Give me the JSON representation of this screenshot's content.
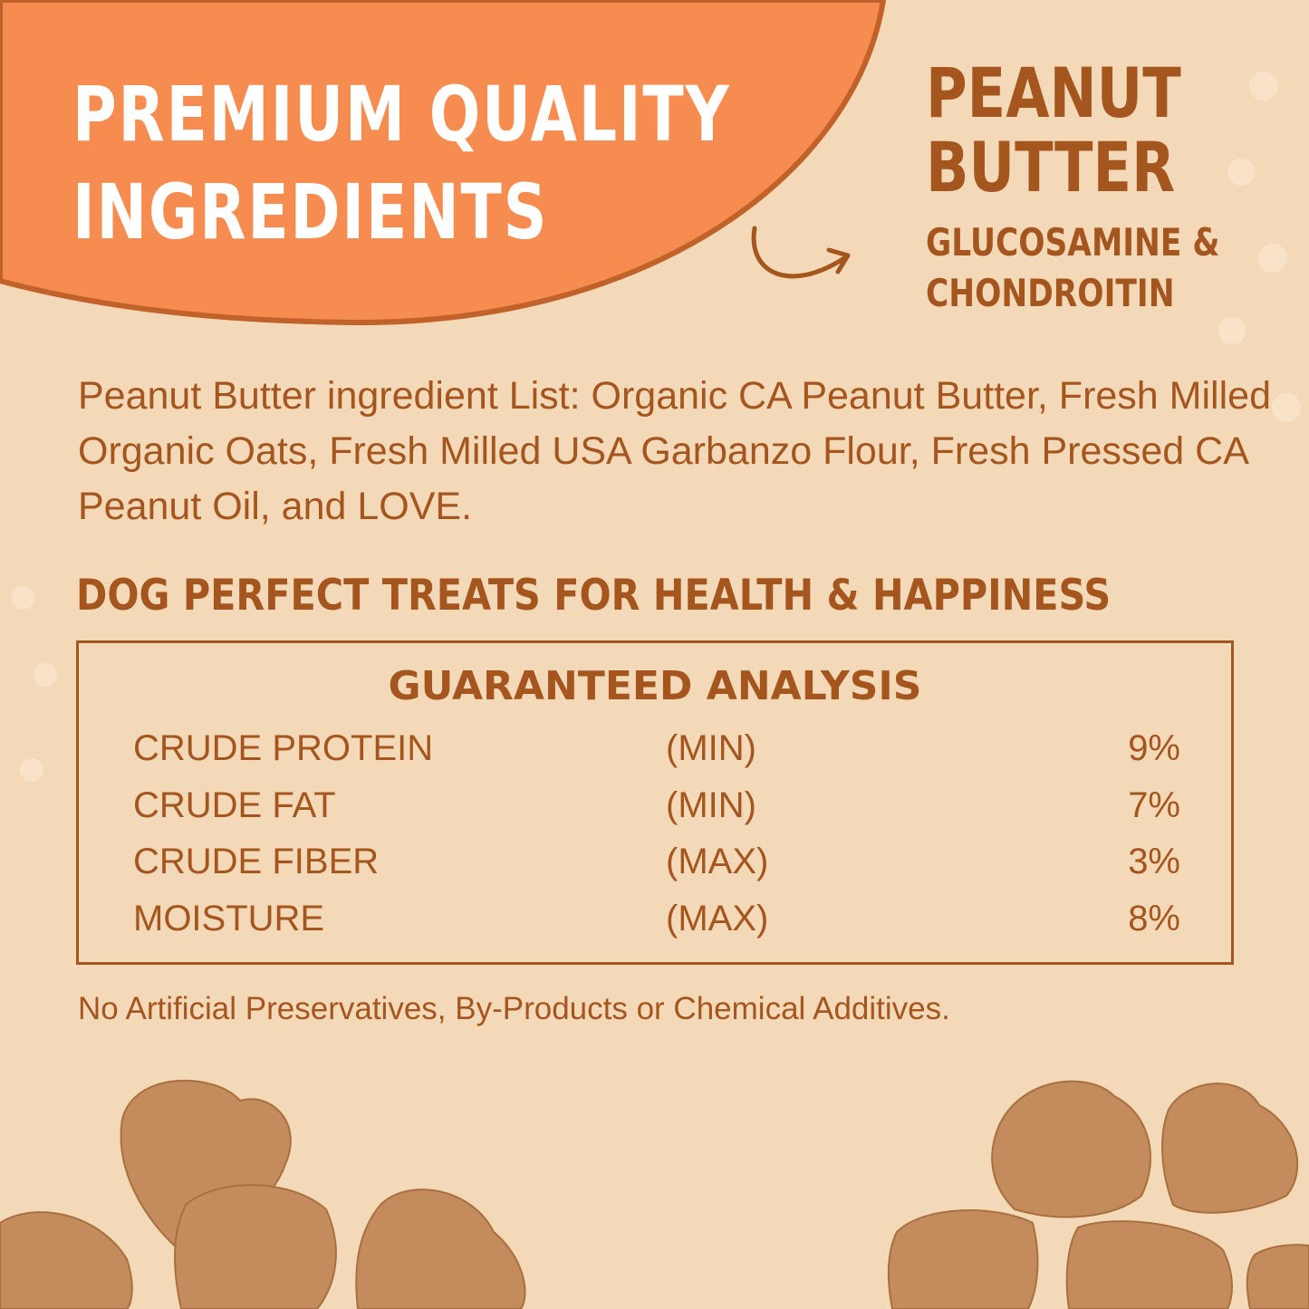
{
  "colors": {
    "background": "#f4d9b9",
    "accent_orange": "#f68c50",
    "brown_text": "#a5561f",
    "outline": "#c0622a"
  },
  "header": {
    "headline_line1": "PREMIUM QUALITY",
    "headline_line2": "INGREDIENTS"
  },
  "flavor": {
    "name_line1": "PEANUT",
    "name_line2": "BUTTER",
    "sub_line1": "GLUCOSAMINE &",
    "sub_line2": "CHONDROITIN",
    "arrow_icon": "curved-arrow-right"
  },
  "ingredients": {
    "text": "Peanut Butter ingredient List: Organic CA Peanut Butter, Fresh Milled Organic Oats, Fresh Milled USA Garbanzo Flour, Fresh Pressed CA Peanut Oil, and LOVE."
  },
  "tagline": "DOG PERFECT TREATS FOR HEALTH & HAPPINESS",
  "analysis": {
    "title": "GUARANTEED ANALYSIS",
    "rows": [
      {
        "name": "CRUDE PROTEIN",
        "qualifier": "(MIN)",
        "value": "9%"
      },
      {
        "name": "CRUDE FAT",
        "qualifier": "(MIN)",
        "value": "7%"
      },
      {
        "name": "CRUDE FIBER",
        "qualifier": "(MAX)",
        "value": "3%"
      },
      {
        "name": "MOISTURE",
        "qualifier": "(MAX)",
        "value": "8%"
      }
    ]
  },
  "footnote": "No Artificial Preservatives, By-Products or Chemical Additives."
}
